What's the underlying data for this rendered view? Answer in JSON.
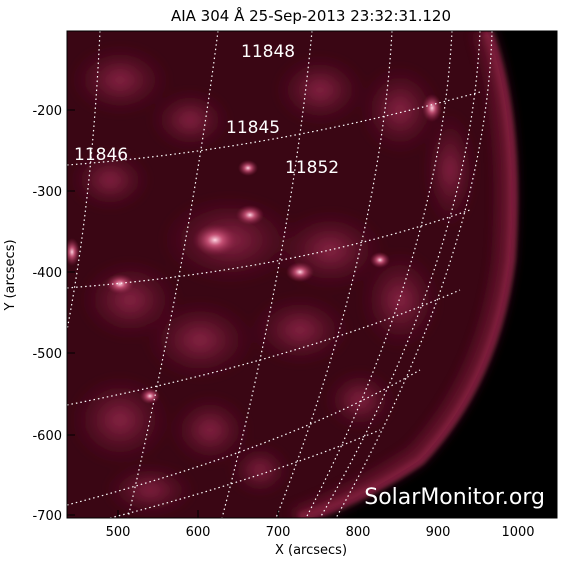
{
  "title": "AIA 304 Å 25-Sep-2013 23:32:31.120",
  "x_axis": {
    "label": "X (arcsecs)",
    "ticks": [
      "500",
      "600",
      "700",
      "800",
      "900",
      "1000"
    ]
  },
  "y_axis": {
    "label": "Y (arcsecs)",
    "ticks": [
      "-200",
      "-300",
      "-400",
      "-500",
      "-600",
      "-700"
    ]
  },
  "active_regions": [
    "11848",
    "11845",
    "11846",
    "11852"
  ],
  "watermark": "SolarMonitor.org",
  "colors": {
    "background": "#000000",
    "plasma_dark": "#3a0614",
    "plasma_mid": "#8e1f44",
    "plasma_bright": "#e07a98",
    "grid": "#ffffff"
  }
}
